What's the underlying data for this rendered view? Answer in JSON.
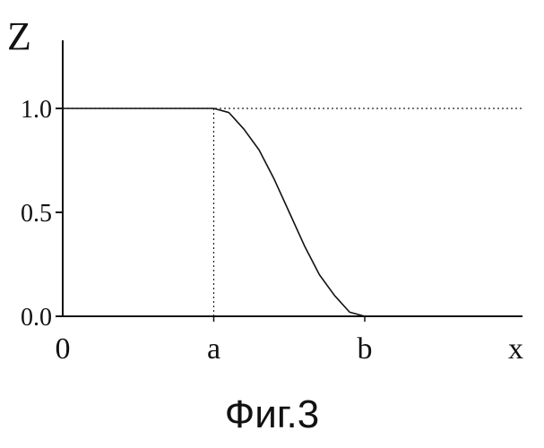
{
  "caption": "Фиг.3",
  "chart_data": {
    "type": "line",
    "ylabel": "Z",
    "xlabel": "x",
    "ylim": [
      0,
      1.15
    ],
    "y_ticks": [
      {
        "value": 0.0,
        "label": "0.0"
      },
      {
        "value": 0.5,
        "label": "0.5"
      },
      {
        "value": 1.0,
        "label": "1.0"
      }
    ],
    "x_ticks": [
      {
        "value": 0,
        "label": "0"
      },
      {
        "value": 1,
        "label": "a"
      },
      {
        "value": 2,
        "label": "b"
      },
      {
        "value": 3,
        "label": "x"
      }
    ],
    "series": [
      {
        "x": [
          0,
          1,
          1.1,
          1.2,
          1.3,
          1.4,
          1.5,
          1.6,
          1.7,
          1.8,
          1.9,
          2,
          3
        ],
        "y": [
          1,
          1,
          0.98,
          0.9,
          0.8,
          0.66,
          0.5,
          0.34,
          0.2,
          0.1,
          0.02,
          0,
          0
        ]
      }
    ],
    "reference_lines": [
      {
        "orientation": "horizontal",
        "value": 1.0,
        "style": "dotted"
      },
      {
        "orientation": "vertical",
        "value": 1,
        "style": "dotted"
      }
    ],
    "colors": {
      "line": "#111111",
      "axis": "#111111"
    }
  }
}
